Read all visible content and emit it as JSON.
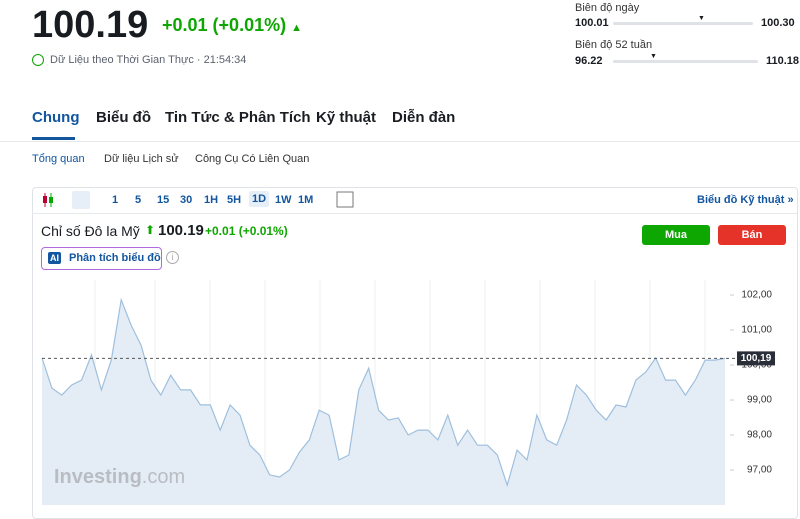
{
  "header": {
    "price": "100.19",
    "change": "+0.01 (+0.01%)",
    "status": "Dữ Liệu theo Thời Gian Thực · 21:54:34"
  },
  "ranges": [
    {
      "label": "Biên độ ngày",
      "low": "100.01",
      "high": "100.30"
    },
    {
      "label": "Biên độ 52 tuần",
      "low": "96.22",
      "high": "110.18"
    }
  ],
  "tabs": [
    "Chung",
    "Biểu đồ",
    "Tin Tức & Phân Tích",
    "Kỹ thuật",
    "Diễn đàn"
  ],
  "subtabs": [
    "Tổng quan",
    "Dữ liệu Lịch sử",
    "Công Cụ Có Liên Quan"
  ],
  "toolbar": {
    "intervals": [
      "1",
      "5",
      "15",
      "30",
      "1H",
      "5H",
      "1D",
      "1W",
      "1M"
    ],
    "link": "Biểu đồ Kỹ thuật »"
  },
  "chart_data": {
    "type": "area",
    "title": "Chỉ số Đô la Mỹ",
    "price": "100.19",
    "change": "+0.01 (+0.01%)",
    "buy": "Mua",
    "sell": "Bán",
    "ai_badge": "AI",
    "ai_label": "Phân tích biểu đồ",
    "watermark": [
      "Investing",
      ".com"
    ],
    "color": "#9fbfdd",
    "fill": "#e4edf6",
    "values": [
      100.2,
      99.34,
      99.14,
      99.43,
      99.57,
      100.29,
      99.29,
      100.14,
      101.86,
      101.14,
      100.57,
      99.57,
      99.14,
      99.71,
      99.29,
      99.29,
      98.86,
      98.86,
      98.14,
      98.86,
      98.57,
      97.71,
      97.43,
      96.86,
      96.8,
      97.0,
      97.51,
      97.86,
      98.71,
      98.57,
      97.29,
      97.43,
      99.29,
      99.91,
      98.71,
      98.43,
      98.49,
      98.0,
      98.14,
      98.14,
      97.86,
      98.57,
      97.71,
      98.14,
      97.71,
      97.71,
      97.43,
      96.57,
      97.57,
      97.29,
      98.57,
      97.86,
      97.71,
      98.43,
      99.43,
      99.14,
      98.71,
      98.43,
      98.86,
      98.8,
      99.57,
      99.8,
      100.2,
      99.57,
      99.57,
      99.14,
      99.57,
      100.14,
      100.14,
      100.19
    ],
    "ylim": [
      96,
      102.43
    ],
    "yticks": [
      {
        "value": 97,
        "label": "97,00"
      },
      {
        "value": 98,
        "label": "98,00"
      },
      {
        "value": 99,
        "label": "99,00"
      },
      {
        "value": 100,
        "label": "100,00"
      },
      {
        "value": 101,
        "label": "101,00"
      },
      {
        "value": 102,
        "label": "102,00"
      }
    ],
    "last": {
      "value": 100.19,
      "label": "100,19"
    }
  }
}
